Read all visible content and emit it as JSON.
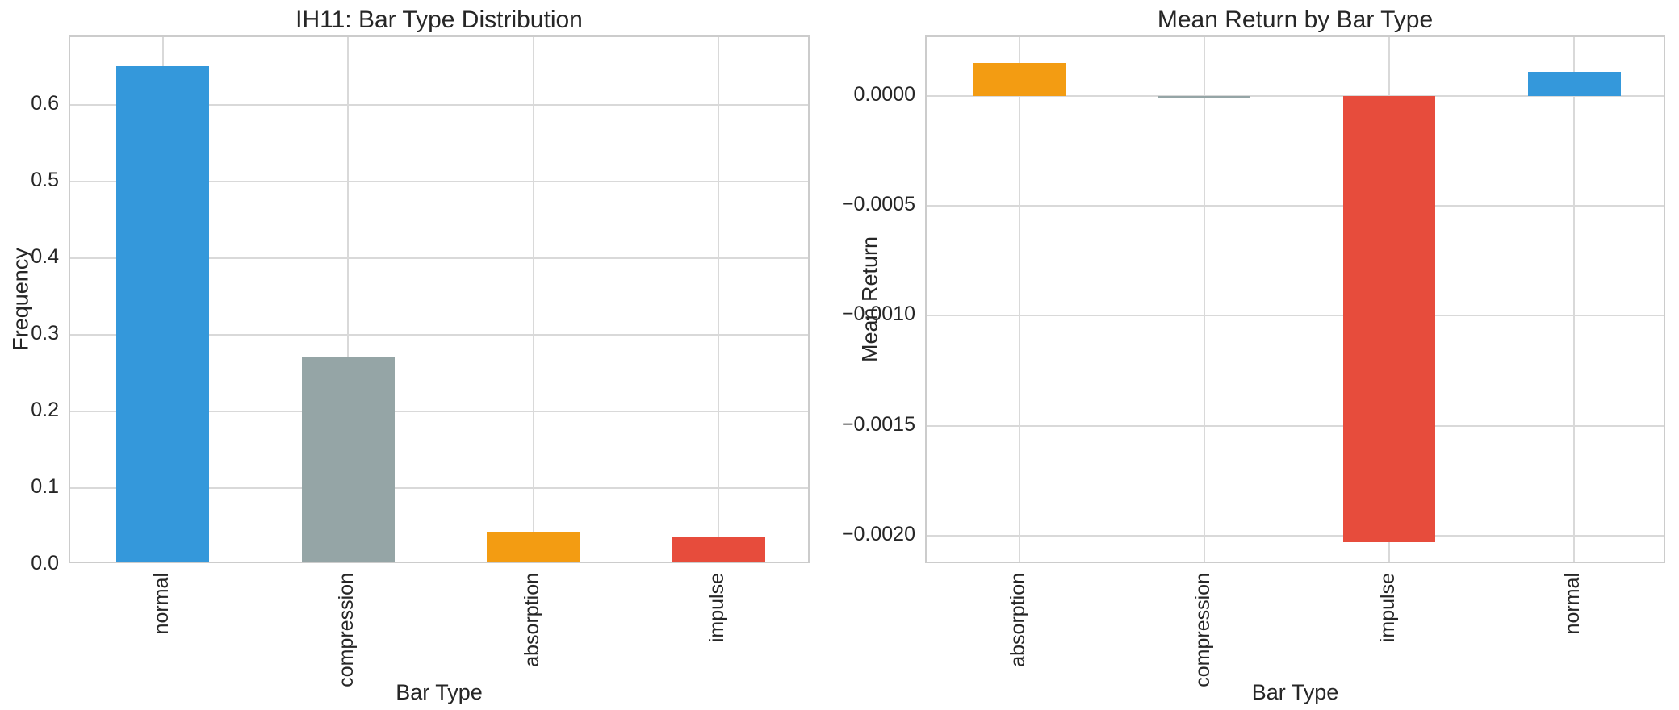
{
  "figure": {
    "background": "#ffffff"
  },
  "style": {
    "grid_color": "#d9d9d9",
    "spine_color": "#cccccc",
    "text_color": "#262626",
    "bar_width_ratio": 0.5
  },
  "chart_data": [
    {
      "type": "bar",
      "title": "IH11: Bar Type Distribution",
      "xlabel": "Bar Type",
      "ylabel": "Frequency",
      "categories": [
        "normal",
        "compression",
        "absorption",
        "impulse"
      ],
      "values": [
        0.65,
        0.27,
        0.043,
        0.037
      ],
      "bar_colors": [
        "#3498db",
        "#95a5a6",
        "#f39c12",
        "#e74c3c"
      ],
      "ylim": [
        0,
        0.688
      ],
      "yticks": [
        {
          "v": 0.0,
          "label": "0.0"
        },
        {
          "v": 0.1,
          "label": "0.1"
        },
        {
          "v": 0.2,
          "label": "0.2"
        },
        {
          "v": 0.3,
          "label": "0.3"
        },
        {
          "v": 0.4,
          "label": "0.4"
        },
        {
          "v": 0.5,
          "label": "0.5"
        },
        {
          "v": 0.6,
          "label": "0.6"
        }
      ],
      "grid": true,
      "x_tick_rotation": 90
    },
    {
      "type": "bar",
      "title": "Mean Return by Bar Type",
      "xlabel": "Bar Type",
      "ylabel": "Mean Return",
      "categories": [
        "absorption",
        "compression",
        "impulse",
        "normal"
      ],
      "values": [
        0.00015,
        -1e-05,
        -0.00203,
        0.00011
      ],
      "bar_colors": [
        "#f39c12",
        "#95a5a6",
        "#e74c3c",
        "#3498db"
      ],
      "ylim": [
        -0.002133,
        0.000268
      ],
      "yticks": [
        {
          "v": 0.0,
          "label": "0.0000"
        },
        {
          "v": -0.0005,
          "label": "−0.0005"
        },
        {
          "v": -0.001,
          "label": "−0.0010"
        },
        {
          "v": -0.0015,
          "label": "−0.0015"
        },
        {
          "v": -0.002,
          "label": "−0.0020"
        }
      ],
      "grid": true,
      "x_tick_rotation": 90
    }
  ]
}
